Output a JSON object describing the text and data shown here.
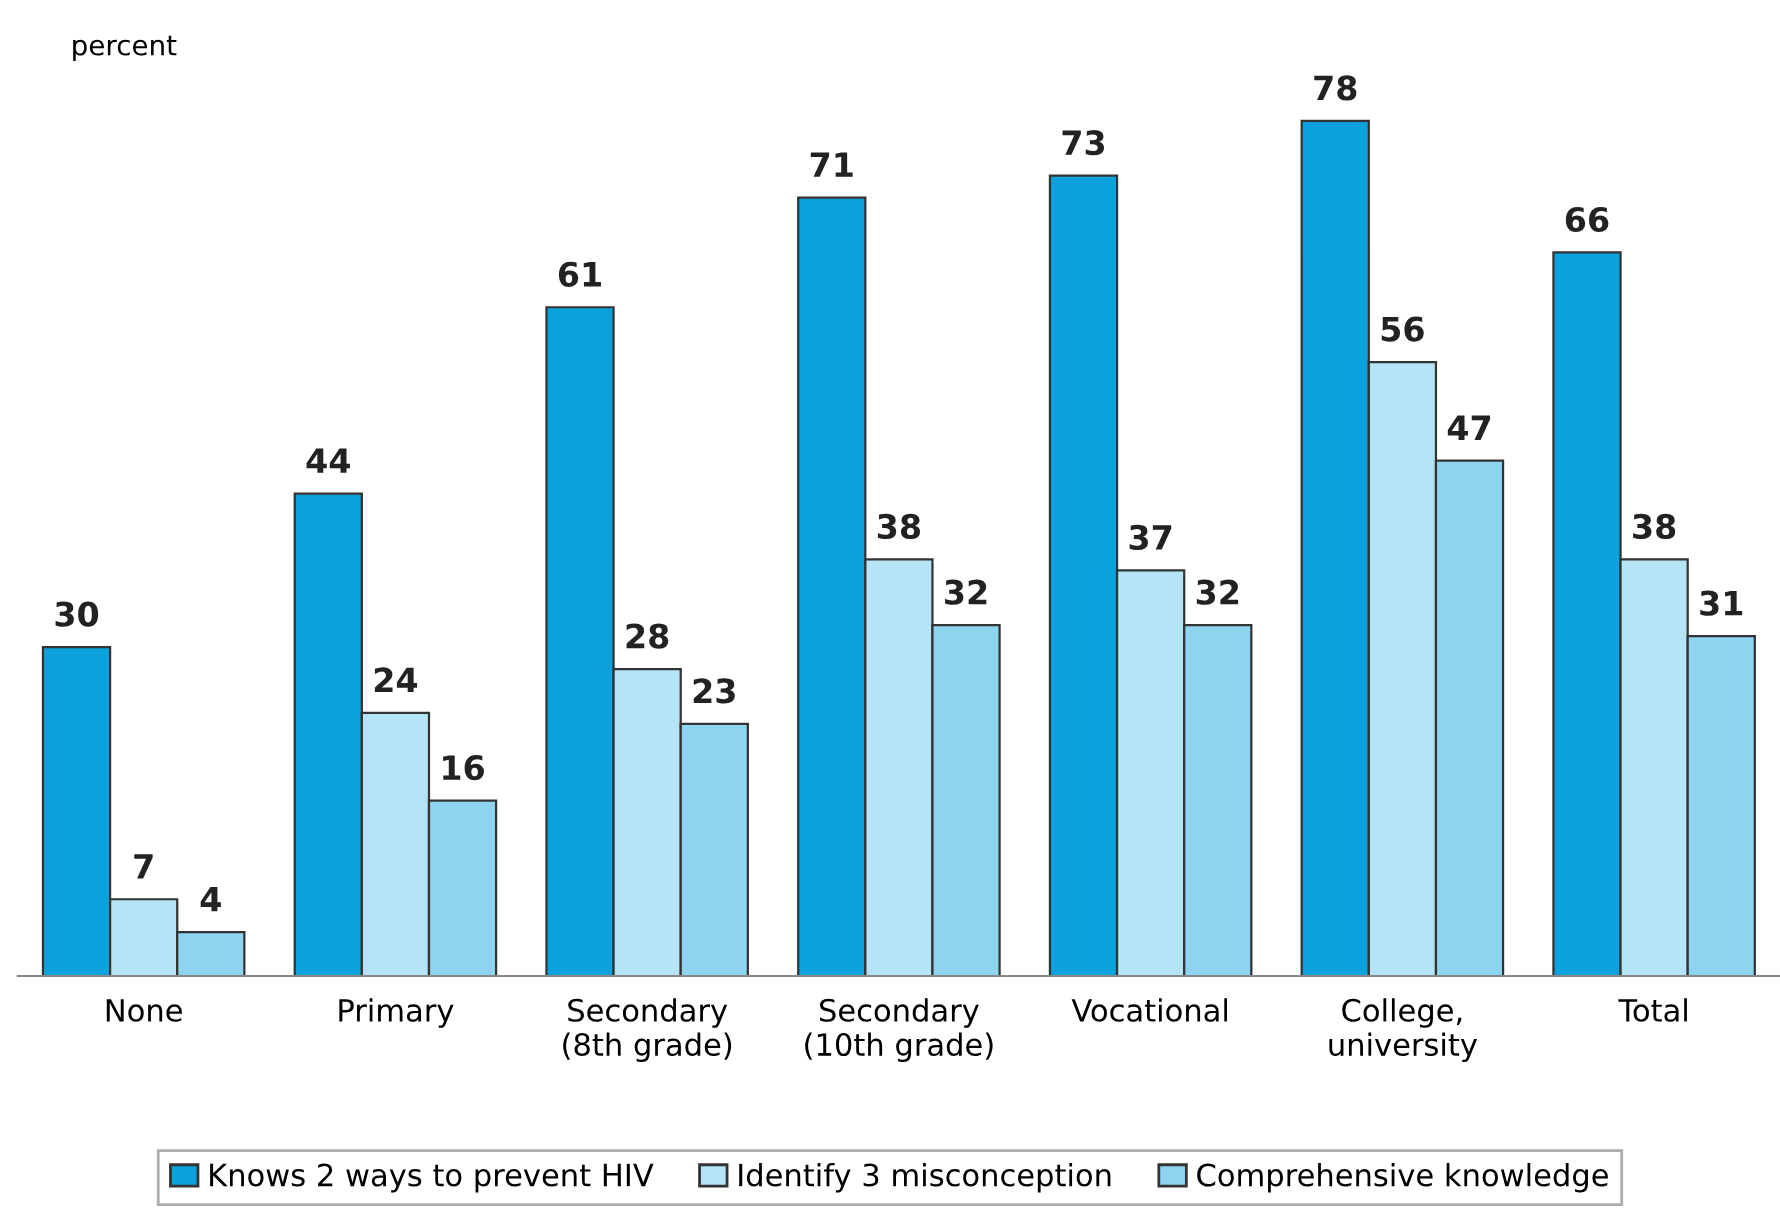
{
  "chart_data": {
    "type": "bar",
    "ylabel": "percent",
    "categories": [
      "None",
      "Primary",
      "Secondary\n(8th grade)",
      "Secondary\n(10th grade)",
      "Vocational",
      "College,\nuniversity",
      "Total"
    ],
    "series": [
      {
        "name": "Knows 2 ways to prevent HIV",
        "color": "#0aa2dc",
        "values": [
          30,
          44,
          61,
          71,
          73,
          78,
          66
        ]
      },
      {
        "name": "Identify 3 misconception",
        "color": "#b5e4f7",
        "values": [
          7,
          24,
          28,
          38,
          37,
          56,
          38
        ]
      },
      {
        "name": "Comprehensive knowledge",
        "color": "#8ed4f1",
        "values": [
          4,
          16,
          23,
          32,
          32,
          47,
          31
        ]
      }
    ],
    "data_labels": true,
    "legend": "bottom",
    "grid": false
  }
}
